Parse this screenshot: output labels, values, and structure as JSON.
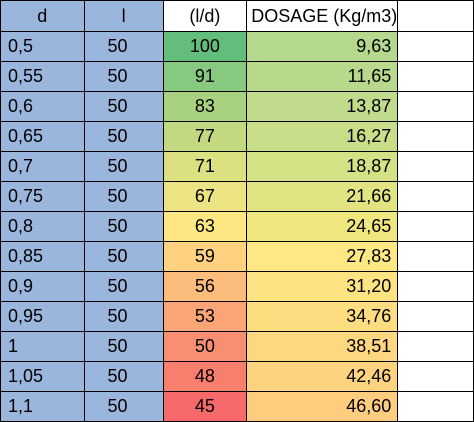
{
  "headers": [
    "d",
    "l",
    "(l/d)",
    "DOSAGE (Kg/m3)",
    ""
  ],
  "rows": [
    {
      "d": "0,5",
      "l": "50",
      "ratio": "100",
      "dosage": "9,63",
      "ratio_color": "#63be7b",
      "dosage_color": "#b3d88e"
    },
    {
      "d": "0,55",
      "l": "50",
      "ratio": "91",
      "dosage": "11,65",
      "ratio_color": "#87c97f",
      "dosage_color": "#b8d98c"
    },
    {
      "d": "0,6",
      "l": "50",
      "ratio": "83",
      "dosage": "13,87",
      "ratio_color": "#a8d27f",
      "dosage_color": "#bfdb8b"
    },
    {
      "d": "0,65",
      "l": "50",
      "ratio": "77",
      "dosage": "16,27",
      "ratio_color": "#c2d980",
      "dosage_color": "#c9de88"
    },
    {
      "d": "0,7",
      "l": "50",
      "ratio": "71",
      "dosage": "18,87",
      "ratio_color": "#dbe081",
      "dosage_color": "#d5e185"
    },
    {
      "d": "0,75",
      "l": "50",
      "ratio": "67",
      "dosage": "21,66",
      "ratio_color": "#ece382",
      "dosage_color": "#e2e482"
    },
    {
      "d": "0,8",
      "l": "50",
      "ratio": "63",
      "dosage": "24,65",
      "ratio_color": "#fee783",
      "dosage_color": "#f0e680"
    },
    {
      "d": "0,85",
      "l": "50",
      "ratio": "59",
      "dosage": "27,83",
      "ratio_color": "#fed280",
      "dosage_color": "#fde883"
    },
    {
      "d": "0,9",
      "l": "50",
      "ratio": "56",
      "dosage": "31,20",
      "ratio_color": "#fcbc7b",
      "dosage_color": "#fee382"
    },
    {
      "d": "0,95",
      "l": "50",
      "ratio": "53",
      "dosage": "34,76",
      "ratio_color": "#faa576",
      "dosage_color": "#fedd81"
    },
    {
      "d": "1",
      "l": "50",
      "ratio": "50",
      "dosage": "38,51",
      "ratio_color": "#f98f72",
      "dosage_color": "#fed880"
    },
    {
      "d": "1,05",
      "l": "50",
      "ratio": "48",
      "dosage": "42,46",
      "ratio_color": "#f87e6e",
      "dosage_color": "#fed37f"
    },
    {
      "d": "1,1",
      "l": "50",
      "ratio": "45",
      "dosage": "46,60",
      "ratio_color": "#f8696b",
      "dosage_color": "#fecd7e"
    }
  ],
  "colors": {
    "header_blue": "#9ab6dd",
    "col_blue": "#9ab6dd",
    "white": "#ffffff"
  }
}
